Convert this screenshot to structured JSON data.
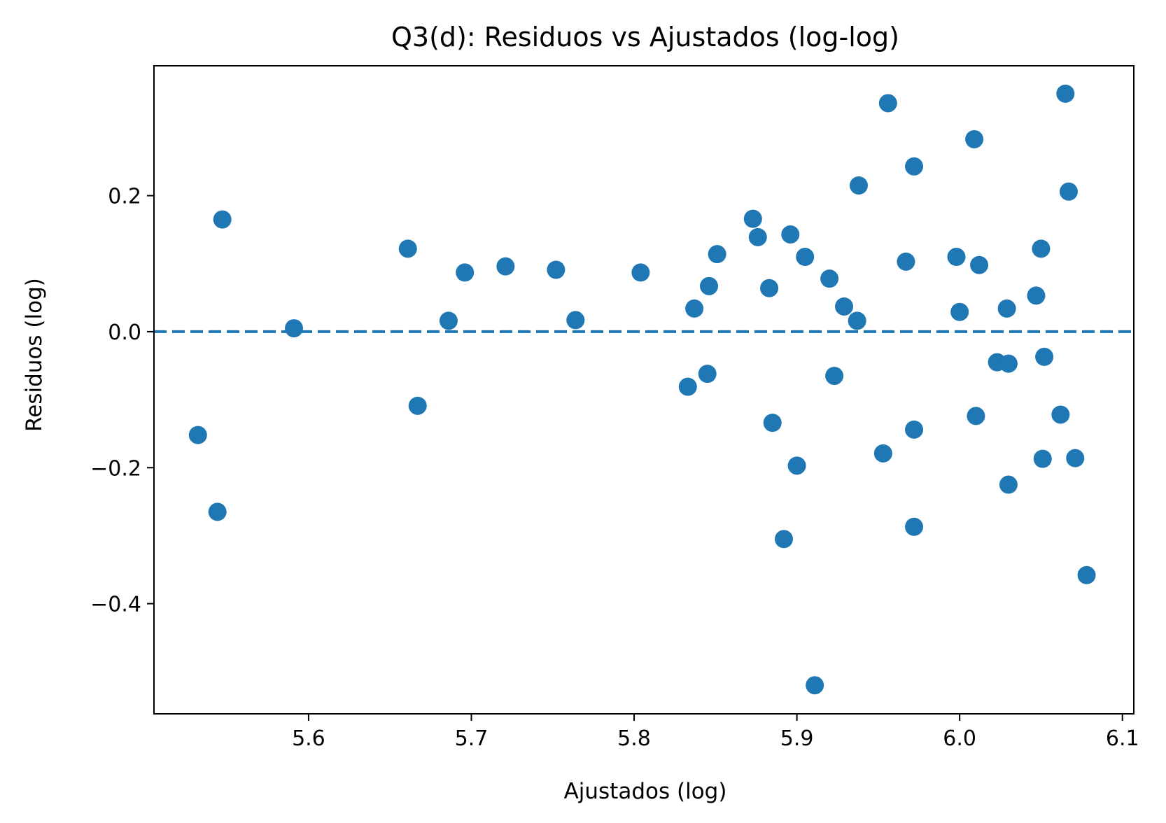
{
  "chart_data": {
    "type": "scatter",
    "title": "Q3(d): Residuos vs Ajustados (log-log)",
    "xlabel": "Ajustados (log)",
    "ylabel": "Residuos (log)",
    "xlim": [
      5.505,
      6.107
    ],
    "ylim": [
      -0.562,
      0.391
    ],
    "xticks": [
      5.6,
      5.7,
      5.8,
      5.9,
      6.0,
      6.1
    ],
    "xtick_labels": [
      "5.6",
      "5.7",
      "5.8",
      "5.9",
      "6.0",
      "6.1"
    ],
    "yticks": [
      0.2,
      0.0,
      -0.2,
      -0.4
    ],
    "ytick_labels": [
      "0.2",
      "0.0",
      "−0.2",
      "−0.4"
    ],
    "grid": false,
    "point_color": "#1f77b4",
    "reference_line": {
      "y": 0.0,
      "style": "dashed",
      "color": "#1f77b4"
    },
    "points": [
      {
        "x": 5.532,
        "y": -0.152
      },
      {
        "x": 5.544,
        "y": -0.265
      },
      {
        "x": 5.547,
        "y": 0.165
      },
      {
        "x": 5.591,
        "y": 0.005
      },
      {
        "x": 5.661,
        "y": 0.122
      },
      {
        "x": 5.667,
        "y": -0.109
      },
      {
        "x": 5.686,
        "y": 0.016
      },
      {
        "x": 5.696,
        "y": 0.087
      },
      {
        "x": 5.721,
        "y": 0.096
      },
      {
        "x": 5.752,
        "y": 0.091
      },
      {
        "x": 5.764,
        "y": 0.017
      },
      {
        "x": 5.804,
        "y": 0.087
      },
      {
        "x": 5.833,
        "y": -0.081
      },
      {
        "x": 5.837,
        "y": 0.034
      },
      {
        "x": 5.845,
        "y": -0.062
      },
      {
        "x": 5.846,
        "y": 0.067
      },
      {
        "x": 5.851,
        "y": 0.114
      },
      {
        "x": 5.873,
        "y": 0.166
      },
      {
        "x": 5.876,
        "y": 0.139
      },
      {
        "x": 5.883,
        "y": 0.064
      },
      {
        "x": 5.885,
        "y": -0.134
      },
      {
        "x": 5.892,
        "y": -0.305
      },
      {
        "x": 5.896,
        "y": 0.143
      },
      {
        "x": 5.9,
        "y": -0.197
      },
      {
        "x": 5.905,
        "y": 0.11
      },
      {
        "x": 5.911,
        "y": -0.52
      },
      {
        "x": 5.92,
        "y": 0.078
      },
      {
        "x": 5.923,
        "y": -0.065
      },
      {
        "x": 5.929,
        "y": 0.037
      },
      {
        "x": 5.937,
        "y": 0.016
      },
      {
        "x": 5.938,
        "y": 0.215
      },
      {
        "x": 5.953,
        "y": -0.179
      },
      {
        "x": 5.956,
        "y": 0.336
      },
      {
        "x": 5.967,
        "y": 0.103
      },
      {
        "x": 5.972,
        "y": 0.243
      },
      {
        "x": 5.972,
        "y": -0.144
      },
      {
        "x": 5.972,
        "y": -0.287
      },
      {
        "x": 5.998,
        "y": 0.11
      },
      {
        "x": 6.0,
        "y": 0.029
      },
      {
        "x": 6.009,
        "y": 0.283
      },
      {
        "x": 6.01,
        "y": -0.124
      },
      {
        "x": 6.012,
        "y": 0.098
      },
      {
        "x": 6.023,
        "y": -0.045
      },
      {
        "x": 6.029,
        "y": 0.034
      },
      {
        "x": 6.03,
        "y": -0.047
      },
      {
        "x": 6.03,
        "y": -0.225
      },
      {
        "x": 6.047,
        "y": 0.053
      },
      {
        "x": 6.05,
        "y": 0.122
      },
      {
        "x": 6.051,
        "y": -0.187
      },
      {
        "x": 6.052,
        "y": -0.037
      },
      {
        "x": 6.062,
        "y": -0.122
      },
      {
        "x": 6.065,
        "y": 0.35
      },
      {
        "x": 6.067,
        "y": 0.206
      },
      {
        "x": 6.071,
        "y": -0.186
      },
      {
        "x": 6.078,
        "y": -0.358
      }
    ]
  }
}
